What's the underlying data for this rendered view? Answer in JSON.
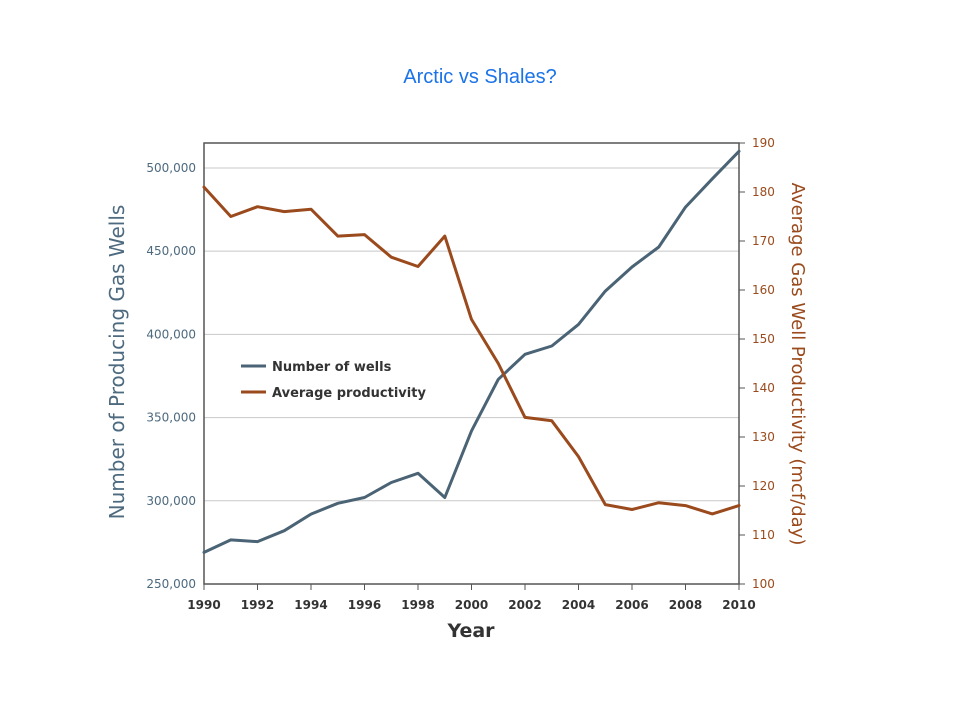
{
  "slide": {
    "title": "Arctic vs Shales?"
  },
  "chart_data": {
    "type": "line",
    "title": "Arctic vs Shales?",
    "xlabel": "Year",
    "ylabel_left": "Number of Producing Gas Wells",
    "ylabel_right": "Average Gas Well Productivity (mcf/day)",
    "x": [
      1990,
      1991,
      1992,
      1993,
      1994,
      1995,
      1996,
      1997,
      1998,
      1999,
      2000,
      2001,
      2002,
      2003,
      2004,
      2005,
      2006,
      2007,
      2008,
      2009,
      2010
    ],
    "xlim": [
      1990,
      2010
    ],
    "x_ticks": [
      "1990",
      "1992",
      "1994",
      "1996",
      "1998",
      "2000",
      "2002",
      "2004",
      "2006",
      "2008",
      "2010"
    ],
    "ylim_left": [
      250000,
      515000
    ],
    "y_ticks_left": [
      "250,000",
      "300,000",
      "350,000",
      "400,000",
      "450,000",
      "500,000"
    ],
    "ylim_right": [
      100,
      190
    ],
    "y_ticks_right": [
      "100",
      "110",
      "120",
      "130",
      "140",
      "150",
      "160",
      "170",
      "180",
      "190"
    ],
    "grid": true,
    "legend_position": "middle-left",
    "series": [
      {
        "name": "Number of wells",
        "axis": "left",
        "color": "#4a6375",
        "values": [
          269000,
          276500,
          275500,
          282000,
          292000,
          298500,
          302000,
          311000,
          316500,
          302000,
          342000,
          373000,
          388000,
          393000,
          406000,
          426000,
          440500,
          452500,
          476500,
          493500,
          510000
        ]
      },
      {
        "name": "Average productivity",
        "axis": "right",
        "color": "#9a4a1c",
        "values": [
          181,
          175,
          177,
          176,
          176.5,
          171,
          171.3,
          166.7,
          164.8,
          171,
          154,
          145,
          134,
          133.3,
          126,
          116.2,
          115.2,
          116.6,
          116,
          114.3,
          116
        ]
      }
    ]
  }
}
